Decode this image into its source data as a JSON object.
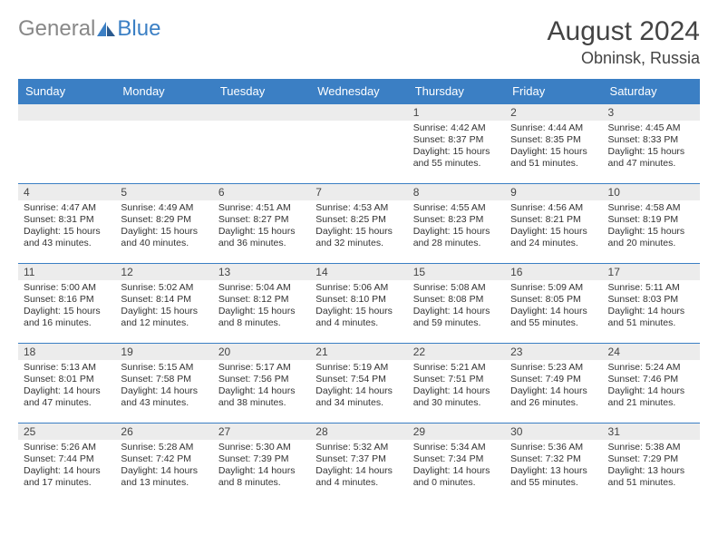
{
  "logo": {
    "part1": "General",
    "part2": "Blue"
  },
  "title": "August 2024",
  "location": "Obninsk, Russia",
  "colors": {
    "header_bg": "#3b7fc4",
    "header_text": "#ffffff",
    "daynum_bg": "#ececec",
    "border": "#3b7fc4",
    "text": "#333333",
    "logo_gray": "#888888",
    "logo_blue": "#3b7fc4"
  },
  "weekdays": [
    "Sunday",
    "Monday",
    "Tuesday",
    "Wednesday",
    "Thursday",
    "Friday",
    "Saturday"
  ],
  "weeks": [
    [
      null,
      null,
      null,
      null,
      {
        "n": "1",
        "sr": "4:42 AM",
        "ss": "8:37 PM",
        "dl": "15 hours and 55 minutes."
      },
      {
        "n": "2",
        "sr": "4:44 AM",
        "ss": "8:35 PM",
        "dl": "15 hours and 51 minutes."
      },
      {
        "n": "3",
        "sr": "4:45 AM",
        "ss": "8:33 PM",
        "dl": "15 hours and 47 minutes."
      }
    ],
    [
      {
        "n": "4",
        "sr": "4:47 AM",
        "ss": "8:31 PM",
        "dl": "15 hours and 43 minutes."
      },
      {
        "n": "5",
        "sr": "4:49 AM",
        "ss": "8:29 PM",
        "dl": "15 hours and 40 minutes."
      },
      {
        "n": "6",
        "sr": "4:51 AM",
        "ss": "8:27 PM",
        "dl": "15 hours and 36 minutes."
      },
      {
        "n": "7",
        "sr": "4:53 AM",
        "ss": "8:25 PM",
        "dl": "15 hours and 32 minutes."
      },
      {
        "n": "8",
        "sr": "4:55 AM",
        "ss": "8:23 PM",
        "dl": "15 hours and 28 minutes."
      },
      {
        "n": "9",
        "sr": "4:56 AM",
        "ss": "8:21 PM",
        "dl": "15 hours and 24 minutes."
      },
      {
        "n": "10",
        "sr": "4:58 AM",
        "ss": "8:19 PM",
        "dl": "15 hours and 20 minutes."
      }
    ],
    [
      {
        "n": "11",
        "sr": "5:00 AM",
        "ss": "8:16 PM",
        "dl": "15 hours and 16 minutes."
      },
      {
        "n": "12",
        "sr": "5:02 AM",
        "ss": "8:14 PM",
        "dl": "15 hours and 12 minutes."
      },
      {
        "n": "13",
        "sr": "5:04 AM",
        "ss": "8:12 PM",
        "dl": "15 hours and 8 minutes."
      },
      {
        "n": "14",
        "sr": "5:06 AM",
        "ss": "8:10 PM",
        "dl": "15 hours and 4 minutes."
      },
      {
        "n": "15",
        "sr": "5:08 AM",
        "ss": "8:08 PM",
        "dl": "14 hours and 59 minutes."
      },
      {
        "n": "16",
        "sr": "5:09 AM",
        "ss": "8:05 PM",
        "dl": "14 hours and 55 minutes."
      },
      {
        "n": "17",
        "sr": "5:11 AM",
        "ss": "8:03 PM",
        "dl": "14 hours and 51 minutes."
      }
    ],
    [
      {
        "n": "18",
        "sr": "5:13 AM",
        "ss": "8:01 PM",
        "dl": "14 hours and 47 minutes."
      },
      {
        "n": "19",
        "sr": "5:15 AM",
        "ss": "7:58 PM",
        "dl": "14 hours and 43 minutes."
      },
      {
        "n": "20",
        "sr": "5:17 AM",
        "ss": "7:56 PM",
        "dl": "14 hours and 38 minutes."
      },
      {
        "n": "21",
        "sr": "5:19 AM",
        "ss": "7:54 PM",
        "dl": "14 hours and 34 minutes."
      },
      {
        "n": "22",
        "sr": "5:21 AM",
        "ss": "7:51 PM",
        "dl": "14 hours and 30 minutes."
      },
      {
        "n": "23",
        "sr": "5:23 AM",
        "ss": "7:49 PM",
        "dl": "14 hours and 26 minutes."
      },
      {
        "n": "24",
        "sr": "5:24 AM",
        "ss": "7:46 PM",
        "dl": "14 hours and 21 minutes."
      }
    ],
    [
      {
        "n": "25",
        "sr": "5:26 AM",
        "ss": "7:44 PM",
        "dl": "14 hours and 17 minutes."
      },
      {
        "n": "26",
        "sr": "5:28 AM",
        "ss": "7:42 PM",
        "dl": "14 hours and 13 minutes."
      },
      {
        "n": "27",
        "sr": "5:30 AM",
        "ss": "7:39 PM",
        "dl": "14 hours and 8 minutes."
      },
      {
        "n": "28",
        "sr": "5:32 AM",
        "ss": "7:37 PM",
        "dl": "14 hours and 4 minutes."
      },
      {
        "n": "29",
        "sr": "5:34 AM",
        "ss": "7:34 PM",
        "dl": "14 hours and 0 minutes."
      },
      {
        "n": "30",
        "sr": "5:36 AM",
        "ss": "7:32 PM",
        "dl": "13 hours and 55 minutes."
      },
      {
        "n": "31",
        "sr": "5:38 AM",
        "ss": "7:29 PM",
        "dl": "13 hours and 51 minutes."
      }
    ]
  ],
  "labels": {
    "sunrise": "Sunrise:",
    "sunset": "Sunset:",
    "daylight": "Daylight:"
  }
}
